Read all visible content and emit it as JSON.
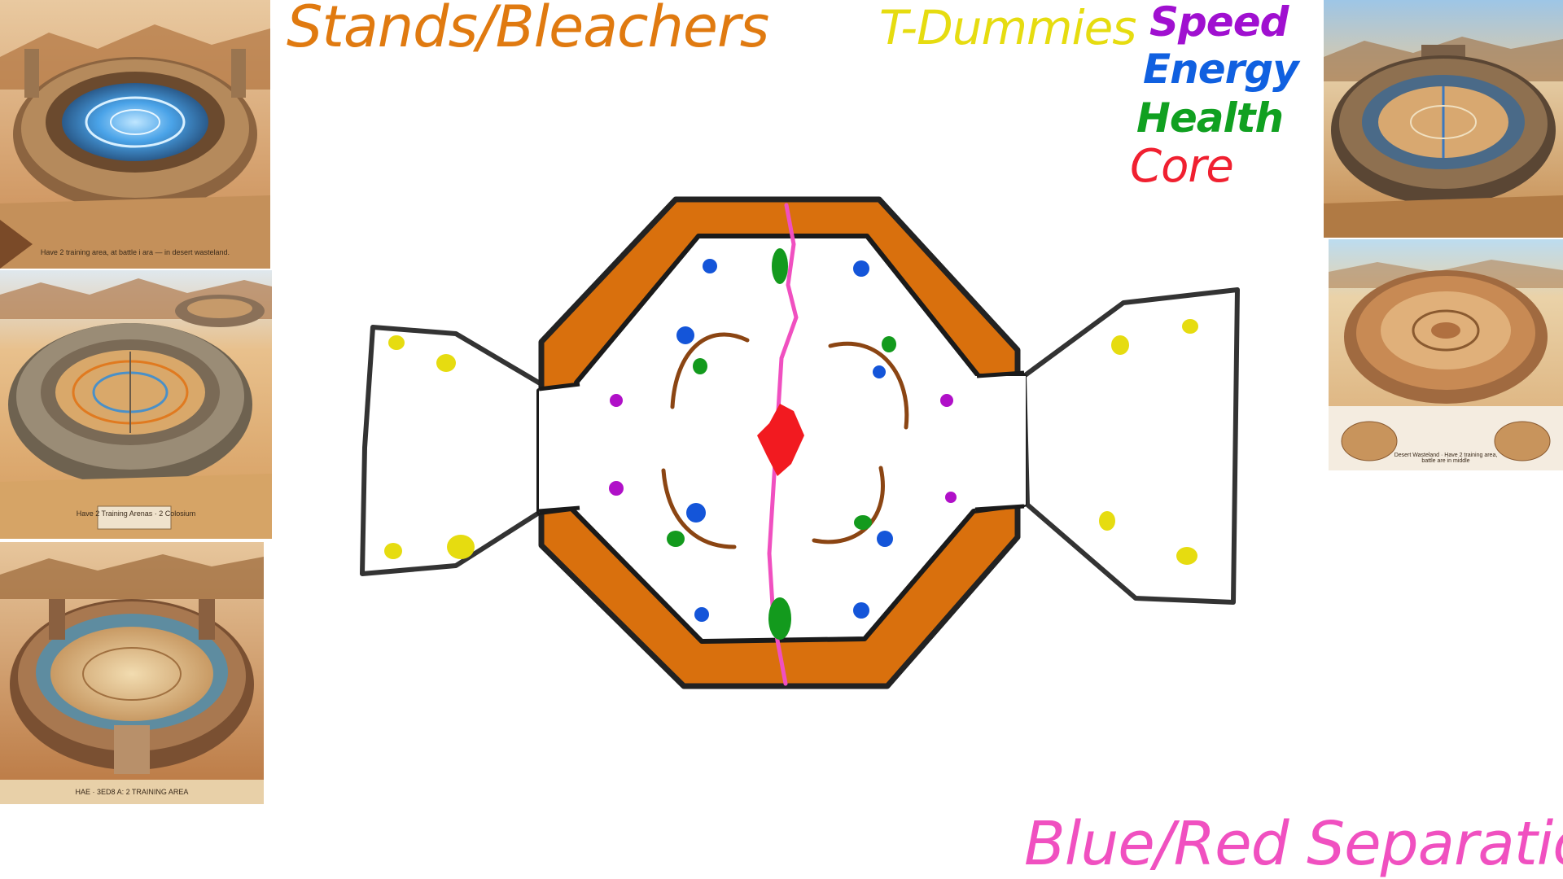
{
  "labels": {
    "stands": "Stands/Bleachers",
    "dummies": "T-Dummies",
    "speed": "Speed",
    "energy": "Energy",
    "health": "Health",
    "core": "Core",
    "separation": "Blue/Red Separation"
  },
  "colors": {
    "stands": "#e07a10",
    "dummies": "#e6dc10",
    "speed": "#a010d0",
    "energy": "#1060e0",
    "health": "#10a020",
    "core": "#f02030",
    "separation": "#f050c0",
    "arc": "#8b4513",
    "outline": "#222222"
  },
  "thumbnails": [
    {
      "name": "thumb-left-1",
      "caption": "Have 2 training area, at battle i ara — in desert wasteland."
    },
    {
      "name": "thumb-left-2",
      "caption": "Have 2 Training Arenas · 2 Colosium"
    },
    {
      "name": "thumb-left-3",
      "caption": "HAE · 3ED8 A: 2 TRAINING AREA"
    },
    {
      "name": "thumb-right-1",
      "caption": ""
    },
    {
      "name": "thumb-right-2",
      "caption": "Desert Wasteland · Have 2 training area, battle are in middle"
    }
  ]
}
